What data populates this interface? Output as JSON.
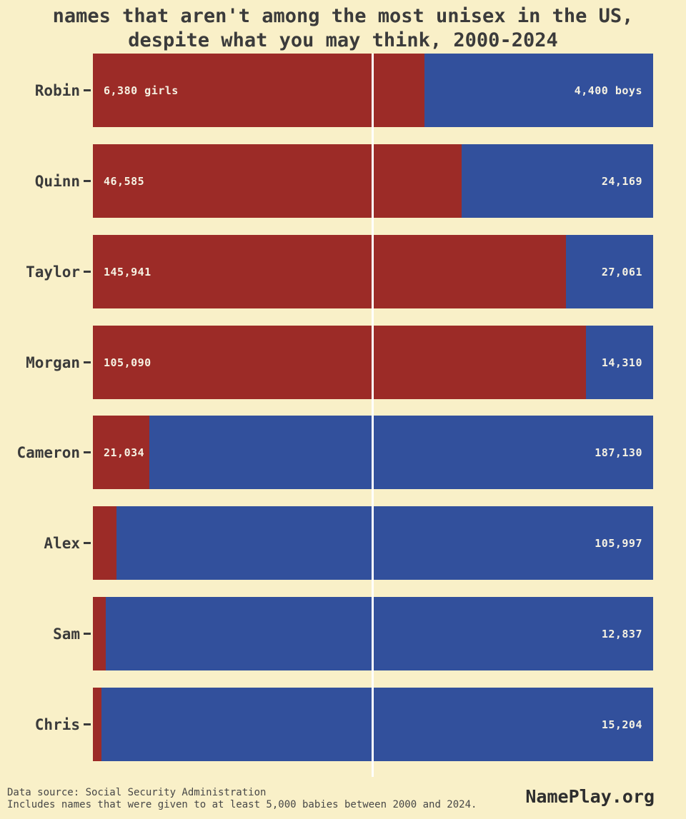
{
  "title": {
    "line1": "names that aren't among the most unisex in the US,",
    "line2": "despite what you may think, 2000-2024"
  },
  "footer": {
    "source_line1": "Data source: Social Security Administration",
    "source_line2": "Includes names that were given to at least 5,000 babies between 2000 and 2024.",
    "brand": "NamePlay.org"
  },
  "colors": {
    "background": "#f9f0c8",
    "girls": "#9c2b27",
    "boys": "#32509c",
    "text": "#3b3b3b",
    "bar_label": "#f6f2e3",
    "center_line": "#ffffff"
  },
  "chart_data": {
    "type": "bar",
    "variant": "horizontal-stacked-proportion",
    "title": "names that aren't among the most unisex in the US, despite what you may think, 2000-2024",
    "xlabel": "",
    "ylabel": "",
    "grid": false,
    "legend_position": "none",
    "center_reference_line_pct": 50,
    "categories": [
      "Robin",
      "Quinn",
      "Taylor",
      "Morgan",
      "Cameron",
      "Alex",
      "Sam",
      "Chris"
    ],
    "series": [
      {
        "name": "girls",
        "color": "#9c2b27",
        "values": [
          6380,
          46585,
          145941,
          105090,
          21034,
          null,
          null,
          null
        ]
      },
      {
        "name": "boys",
        "color": "#32509c",
        "values": [
          4400,
          24169,
          27061,
          14310,
          187130,
          105997,
          12837,
          15204
        ]
      }
    ],
    "rows": [
      {
        "name": "Robin",
        "girls_label": "6,380 girls",
        "boys_label": "4,400 boys",
        "girls_share_pct": 59.2
      },
      {
        "name": "Quinn",
        "girls_label": "46,585",
        "boys_label": "24,169",
        "girls_share_pct": 65.8
      },
      {
        "name": "Taylor",
        "girls_label": "145,941",
        "boys_label": "27,061",
        "girls_share_pct": 84.4
      },
      {
        "name": "Morgan",
        "girls_label": "105,090",
        "boys_label": "14,310",
        "girls_share_pct": 88.0
      },
      {
        "name": "Cameron",
        "girls_label": "21,034",
        "boys_label": "187,130",
        "girls_share_pct": 10.1
      },
      {
        "name": "Alex",
        "girls_label": "",
        "boys_label": "105,997",
        "girls_share_pct": 4.2
      },
      {
        "name": "Sam",
        "girls_label": "",
        "boys_label": "12,837",
        "girls_share_pct": 2.3
      },
      {
        "name": "Chris",
        "girls_label": "",
        "boys_label": "15,204",
        "girls_share_pct": 1.5
      }
    ],
    "notes": "White vertical reference line marks 50/50 split between girls (red, left) and boys (blue, right)"
  }
}
